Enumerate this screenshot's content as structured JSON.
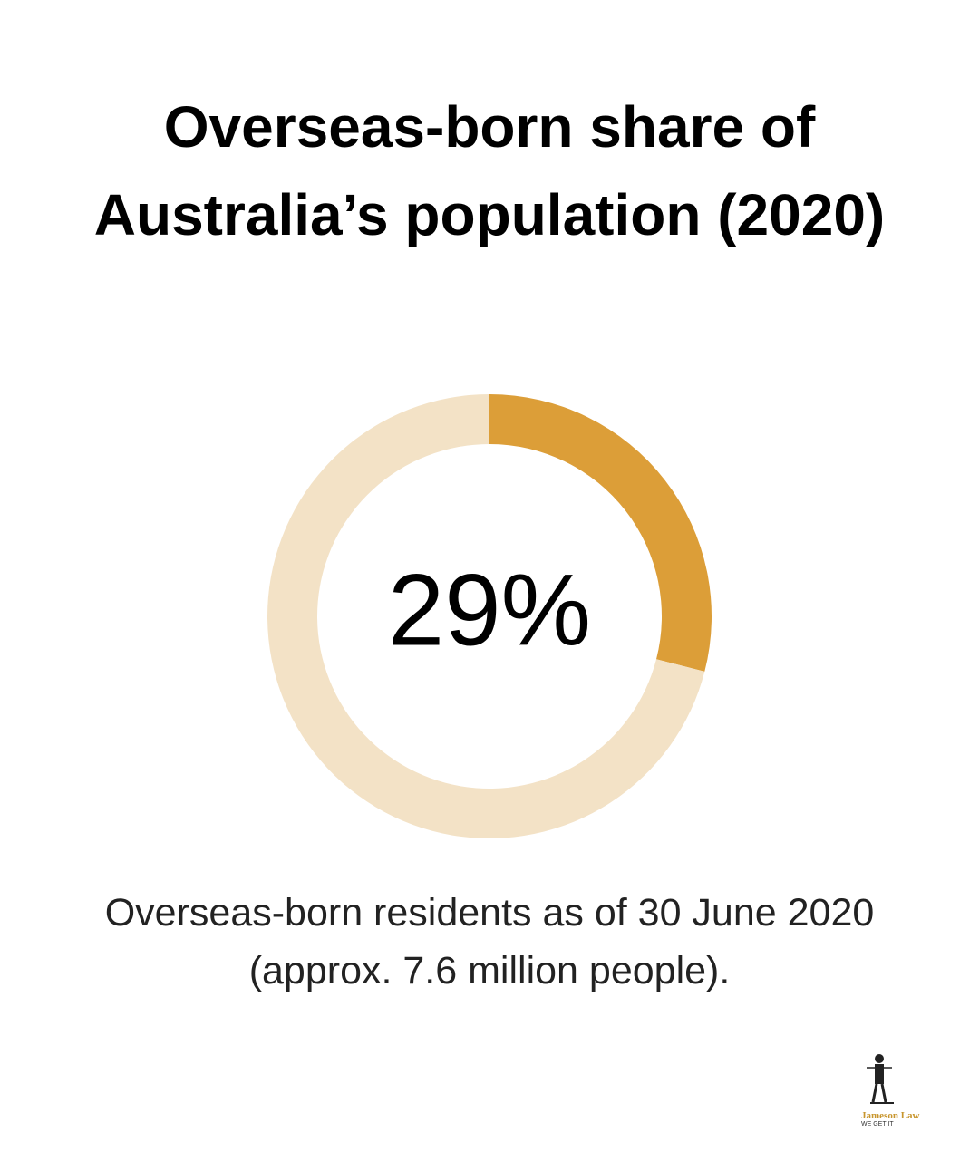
{
  "chart_data": {
    "type": "donut",
    "title": "Overseas-born share of Australia’s population (2020)",
    "values": [
      29,
      71
    ],
    "value_labels": [
      "29%",
      null
    ],
    "colors": [
      "#dc9e38",
      "#f3e2c6"
    ],
    "caption": "Overseas-born residents as of 30 June 2020 (approx. 7.6 million people)."
  },
  "logo": {
    "name": "Jameson Law",
    "tagline": "WE GET IT"
  }
}
